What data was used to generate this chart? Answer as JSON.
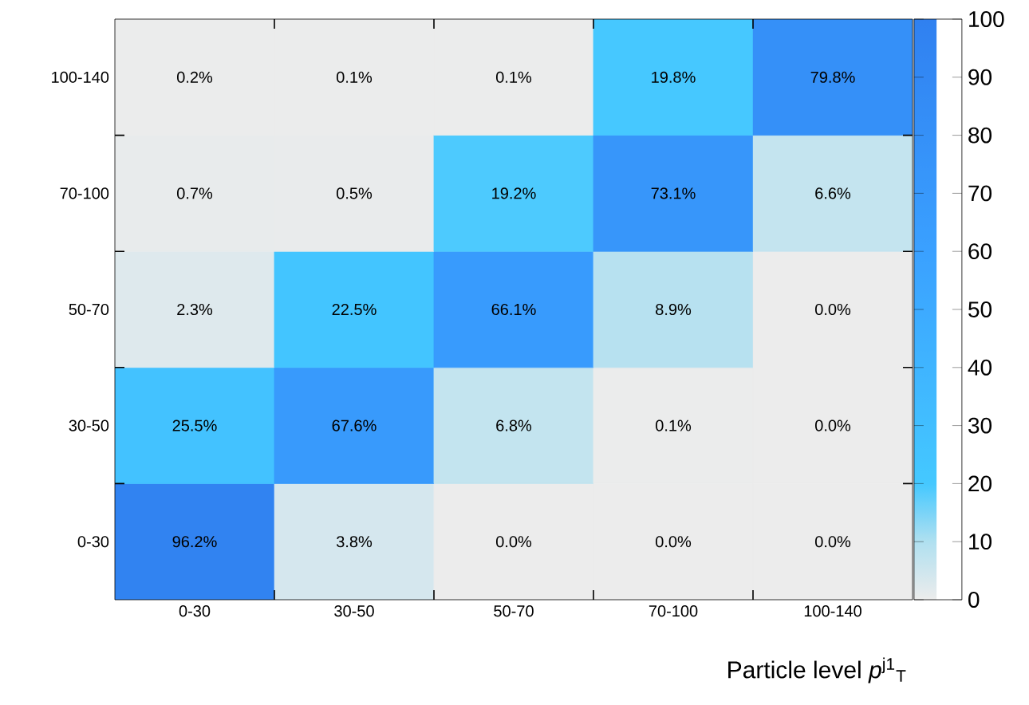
{
  "chart_data": {
    "type": "heatmap",
    "xlabel": "Particle level *p*$^{j1}$$_{T}$",
    "categories": [
      "0-30",
      "30-50",
      "50-70",
      "70-100",
      "100-140"
    ],
    "y_categories": [
      "100-140",
      "70-100",
      "50-70",
      "30-50",
      "0-30"
    ],
    "cells": [
      [
        0.2,
        0.1,
        0.1,
        19.8,
        79.8
      ],
      [
        0.7,
        0.5,
        19.2,
        73.1,
        6.6
      ],
      [
        2.3,
        22.5,
        66.1,
        8.9,
        0.0
      ],
      [
        25.5,
        67.6,
        6.8,
        0.1,
        0.0
      ],
      [
        96.2,
        3.8,
        0.0,
        0.0,
        0.0
      ]
    ],
    "cell_labels": [
      [
        "0.2%",
        "0.1%",
        "0.1%",
        "19.8%",
        "79.8%"
      ],
      [
        "0.7%",
        "0.5%",
        "19.2%",
        "73.1%",
        "6.6%"
      ],
      [
        "2.3%",
        "22.5%",
        "66.1%",
        "8.9%",
        "0.0%"
      ],
      [
        "25.5%",
        "67.6%",
        "6.8%",
        "0.1%",
        "0.0%"
      ],
      [
        "96.2%",
        "3.8%",
        "0.0%",
        "0.0%",
        "0.0%"
      ]
    ],
    "clim": [
      0,
      100
    ],
    "cticks": [
      0,
      10,
      20,
      30,
      40,
      50,
      60,
      70,
      80,
      90,
      100
    ]
  }
}
